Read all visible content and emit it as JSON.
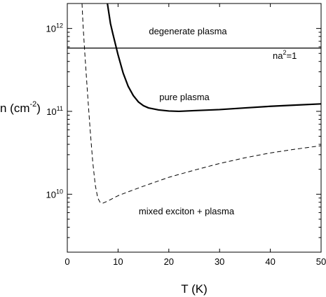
{
  "chart_data": {
    "type": "line",
    "xlabel": "T (K)",
    "ylabel": {
      "base": "n (cm",
      "sup": "-2",
      "close": ")"
    },
    "xlim": [
      0,
      50
    ],
    "ylim": [
      2000000000.0,
      2000000000000.0
    ],
    "yscale": "log",
    "grid": false,
    "x_ticks": [
      0,
      10,
      20,
      30,
      40,
      50
    ],
    "x_tick_labels": [
      "0",
      "10",
      "20",
      "30",
      "40",
      "50"
    ],
    "y_ticks": [
      {
        "value": 10000000000.0,
        "base": "10",
        "exp": "10"
      },
      {
        "value": 100000000000.0,
        "base": "10",
        "exp": "11"
      },
      {
        "value": 1000000000000.0,
        "base": "10",
        "exp": "12"
      }
    ],
    "annotations": {
      "degenerate": "degenerate plasma",
      "pure": "pure plasma",
      "mixed": "mixed exciton + plasma",
      "na2": {
        "base": "na",
        "sup": "2",
        "rest": "=1"
      }
    },
    "series": [
      {
        "style": "solid-thin",
        "x": [
          0,
          50
        ],
        "y": [
          580000000000.0,
          580000000000.0
        ]
      },
      {
        "style": "solid-thick",
        "x": [
          7.9,
          8.5,
          9,
          10,
          11,
          12,
          13,
          14,
          15,
          16,
          18,
          20,
          22,
          25,
          30,
          35,
          40,
          45,
          50
        ],
        "y": [
          2000000000000.0,
          1150000000000.0,
          850000000000.0,
          480000000000.0,
          290000000000.0,
          200000000000.0,
          155000000000.0,
          130000000000.0,
          117000000000.0,
          110000000000.0,
          104000000000.0,
          101000000000.0,
          100000000000.0,
          102000000000.0,
          105000000000.0,
          110000000000.0,
          115000000000.0,
          119000000000.0,
          123000000000.0
        ]
      },
      {
        "style": "dashed",
        "x": [
          2.9,
          3.1,
          3.5,
          4,
          4.5,
          5,
          5.5,
          6,
          6.5,
          7,
          8,
          10,
          12,
          15,
          20,
          25,
          30,
          35,
          40,
          45,
          50
        ],
        "y": [
          2000000000000.0,
          1100000000000.0,
          450000000000.0,
          160000000000.0,
          60000000000.0,
          25000000000.0,
          13000000000.0,
          9000000000.0,
          7900000000.0,
          7800000000.0,
          8300000000.0,
          9600000000.0,
          10700000000.0,
          12500000000.0,
          16000000000.0,
          19500000000.0,
          23500000000.0,
          27500000000.0,
          31500000000.0,
          35000000000.0,
          38500000000.0
        ]
      }
    ]
  }
}
